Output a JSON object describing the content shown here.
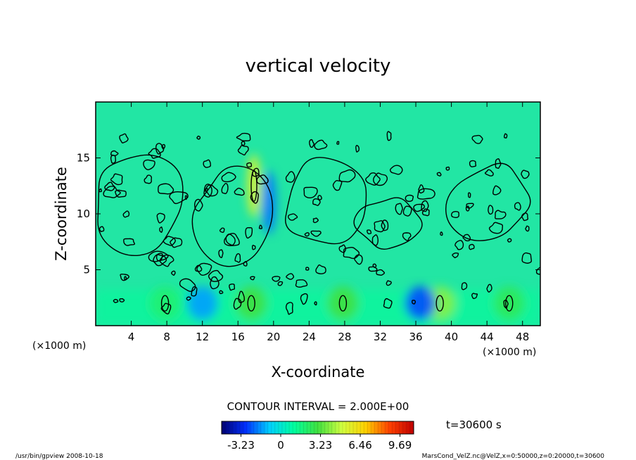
{
  "chart_data": {
    "type": "heatmap",
    "title": "vertical velocity",
    "xlabel": "X-coordinate",
    "ylabel": "Z-coordinate",
    "x_unit_left": "(×1000 m)",
    "x_unit_right": "(×1000 m)",
    "xlim": [
      0,
      50
    ],
    "ylim": [
      0,
      20
    ],
    "x_ticks": [
      4,
      8,
      12,
      16,
      20,
      24,
      28,
      32,
      36,
      40,
      44,
      48
    ],
    "y_ticks": [
      5,
      10,
      15
    ],
    "contour_interval_label": "CONTOUR INTERVAL = 2.000E+00",
    "time_label": "t=30600 s",
    "colorbar": {
      "range": [
        -4.8,
        10.8
      ],
      "ticks": [
        -3.23,
        0,
        3.23,
        6.46,
        9.69
      ],
      "tick_labels": [
        "-3.23",
        "0",
        "3.23",
        "6.46",
        "9.69"
      ],
      "colors": [
        "#000070",
        "#0030ff",
        "#00d0ff",
        "#00ffa0",
        "#40e040",
        "#d0ff40",
        "#ffd000",
        "#ff4000",
        "#c00000"
      ]
    },
    "background_value": 0,
    "features": [
      {
        "type": "updraft",
        "x": 17.8,
        "z": 12.5,
        "value": 5.5
      },
      {
        "type": "updraft",
        "x": 17.5,
        "z": 2.0,
        "value": 3.0
      },
      {
        "type": "updraft",
        "x": 27.8,
        "z": 2.0,
        "value": 3.0
      },
      {
        "type": "updraft",
        "x": 38.7,
        "z": 2.0,
        "value": 4.0
      },
      {
        "type": "updraft",
        "x": 46.5,
        "z": 2.0,
        "value": 2.5
      },
      {
        "type": "updraft",
        "x": 7.8,
        "z": 2.0,
        "value": 2.0
      },
      {
        "type": "downdraft",
        "x": 36.5,
        "z": 2.0,
        "value": -2.5
      },
      {
        "type": "downdraft",
        "x": 12.0,
        "z": 2.0,
        "value": -1.5
      },
      {
        "type": "downdraft",
        "x": 19.5,
        "z": 11.0,
        "value": -2.0
      }
    ]
  },
  "footer": {
    "left": "/usr/bin/gpview   2008-10-18",
    "right": "MarsCond_VelZ.nc@VelZ,x=0:50000,z=0:20000,t=30600"
  }
}
